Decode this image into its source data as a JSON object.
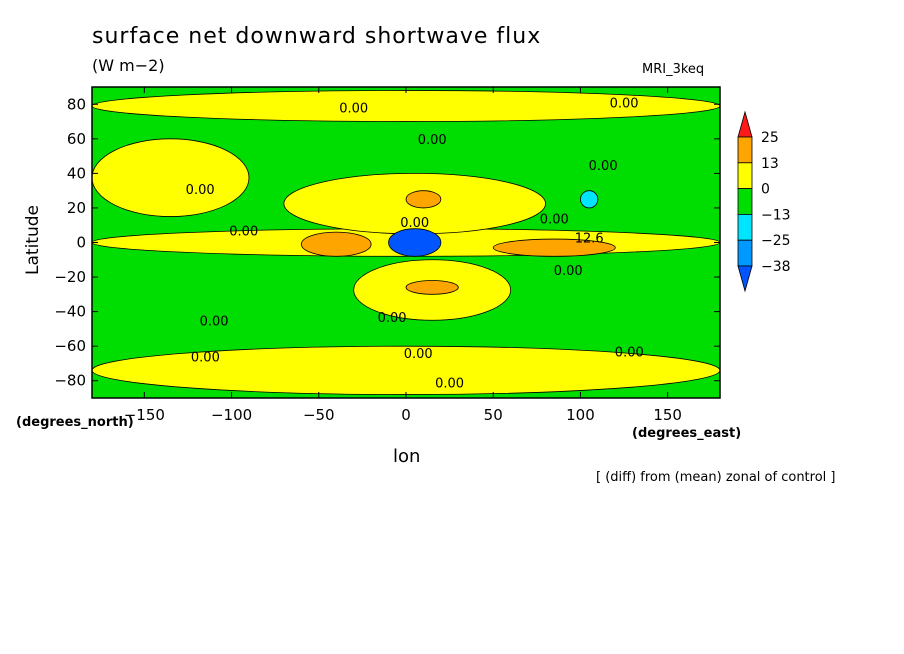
{
  "chart_data": {
    "type": "heatmap",
    "title": "surface net downward shortwave flux",
    "units": "(W m−2)",
    "model": "MRI_3keq",
    "xlabel": "lon",
    "ylabel": "Latitude",
    "x_unit_label": "(degrees_east)",
    "y_unit_label": "(degrees_north)",
    "note": "[ (diff) from (mean) zonal of control ]",
    "xlim": [
      -180,
      180
    ],
    "ylim": [
      -90,
      90
    ],
    "x_ticks": [
      -150,
      -100,
      -50,
      0,
      50,
      100,
      150
    ],
    "y_ticks": [
      -80,
      -60,
      -40,
      -20,
      0,
      20,
      40,
      60,
      80
    ],
    "x_tick_labels": [
      "−150",
      "−100",
      "−50",
      "0",
      "50",
      "100",
      "150"
    ],
    "y_tick_labels": [
      "−80",
      "−60",
      "−40",
      "−20",
      "0",
      "20",
      "40",
      "60",
      "80"
    ],
    "colorbar": {
      "levels": [
        "25",
        "13",
        "0",
        "−13",
        "−25",
        "−38"
      ],
      "colors": [
        "#ff1a1a",
        "#ffa500",
        "#ffff00",
        "#00dd00",
        "#00e5ff",
        "#0099ff",
        "#0055ff"
      ]
    },
    "background_color": "#00dd00",
    "regions": [
      {
        "level": "0 to 13",
        "color": "#ffff00",
        "lon": [
          -180,
          180
        ],
        "lat": [
          -8,
          8
        ]
      },
      {
        "level": "0 to 13",
        "color": "#ffff00",
        "lon": [
          -180,
          -90
        ],
        "lat": [
          15,
          60
        ]
      },
      {
        "level": "0 to 13",
        "color": "#ffff00",
        "lon": [
          -70,
          80
        ],
        "lat": [
          5,
          40
        ]
      },
      {
        "level": "0 to 13",
        "color": "#ffff00",
        "lon": [
          -30,
          60
        ],
        "lat": [
          -45,
          -10
        ]
      },
      {
        "level": "0 to 13",
        "color": "#ffff00",
        "lon": [
          -180,
          180
        ],
        "lat": [
          -88,
          -60
        ]
      },
      {
        "level": "0 to 13",
        "color": "#ffff00",
        "lon": [
          -180,
          180
        ],
        "lat": [
          70,
          88
        ]
      },
      {
        "level": "13 to 25",
        "color": "#ffa500",
        "lon": [
          -60,
          -20
        ],
        "lat": [
          -8,
          6
        ]
      },
      {
        "level": "13 to 25",
        "color": "#ffa500",
        "lon": [
          50,
          120
        ],
        "lat": [
          -8,
          2
        ]
      },
      {
        "level": "13 to 25",
        "color": "#ffa500",
        "lon": [
          0,
          20
        ],
        "lat": [
          20,
          30
        ]
      },
      {
        "level": "13 to 25",
        "color": "#ffa500",
        "lon": [
          0,
          30
        ],
        "lat": [
          -30,
          -22
        ]
      },
      {
        "level": "-38 to -25",
        "color": "#0055ff",
        "lon": [
          -10,
          20
        ],
        "lat": [
          -8,
          8
        ]
      },
      {
        "level": "-25 to -13",
        "color": "#00e5ff",
        "lon": [
          100,
          110
        ],
        "lat": [
          20,
          30
        ]
      }
    ],
    "contour_labels": [
      {
        "text": "0.00",
        "lon": -30,
        "lat": 78
      },
      {
        "text": "0.00",
        "lon": 125,
        "lat": 81
      },
      {
        "text": "0.00",
        "lon": 15,
        "lat": 60
      },
      {
        "text": "0.00",
        "lon": 113,
        "lat": 45
      },
      {
        "text": "0.00",
        "lon": -118,
        "lat": 31
      },
      {
        "text": "0.00",
        "lon": 5,
        "lat": 12
      },
      {
        "text": "0.00",
        "lon": 85,
        "lat": 14
      },
      {
        "text": "0.00",
        "lon": -93,
        "lat": 7
      },
      {
        "text": "12.6",
        "lon": 105,
        "lat": 3
      },
      {
        "text": "0.00",
        "lon": 93,
        "lat": -16
      },
      {
        "text": "0.00",
        "lon": -110,
        "lat": -45
      },
      {
        "text": "0.00",
        "lon": -8,
        "lat": -43
      },
      {
        "text": "0.00",
        "lon": -115,
        "lat": -66
      },
      {
        "text": "0.00",
        "lon": 7,
        "lat": -64
      },
      {
        "text": "0.00",
        "lon": 128,
        "lat": -63
      },
      {
        "text": "0.00",
        "lon": 25,
        "lat": -81
      }
    ]
  }
}
